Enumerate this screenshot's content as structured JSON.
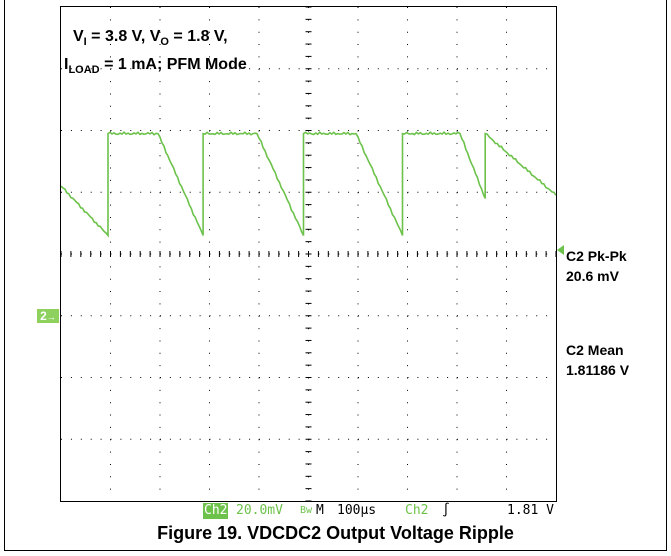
{
  "annotations": {
    "condition_line1": {
      "v1": "V",
      "v1_sub": "I",
      "v1_rest": " = 3.8 V, V",
      "v2_sub": "O",
      "v2_rest": " = 1.8 V,"
    },
    "condition_line2": {
      "i": "I",
      "i_sub": "LOAD",
      "i_rest": " = 1 mA; PFM Mode"
    }
  },
  "measurements": {
    "pk_label": "C2 Pk-Pk",
    "pk_value": "20.6 mV",
    "mean_label": "C2 Mean",
    "mean_value": "1.81186 V"
  },
  "channel_marker": {
    "label": "2",
    "arrow": "→"
  },
  "status_bar": {
    "channel": "Ch2",
    "scale": "20.0mV",
    "bandwidth_icon": "Bw",
    "m": "M",
    "timebase": "100µs",
    "trigger_channel": "Ch2",
    "trigger_edge": "∫",
    "trigger_level": "1.81 V"
  },
  "caption": "Figure 19. VDCDC2 Output Voltage Ripple",
  "colors": {
    "trace": "#6cc24a",
    "grid": "#000000"
  },
  "chart_data": {
    "type": "line",
    "title": "",
    "xlabel": "",
    "ylabel": "",
    "xlim": [
      0,
      1000
    ],
    "ylim": [
      -80,
      80
    ],
    "x_unit": "µs",
    "y_unit": "mV (relative to channel marker, 20 mV/div)",
    "grid": true,
    "series": [
      {
        "x": [
          0,
          95,
          95,
          196,
          287,
          287,
          396,
          490,
          490,
          596,
          690,
          690,
          806,
          857,
          857,
          1000
        ],
        "y": [
          22,
          6,
          39,
          39,
          6,
          39,
          39,
          6,
          39,
          39,
          6,
          39,
          39,
          18,
          39,
          19
        ]
      }
    ]
  }
}
